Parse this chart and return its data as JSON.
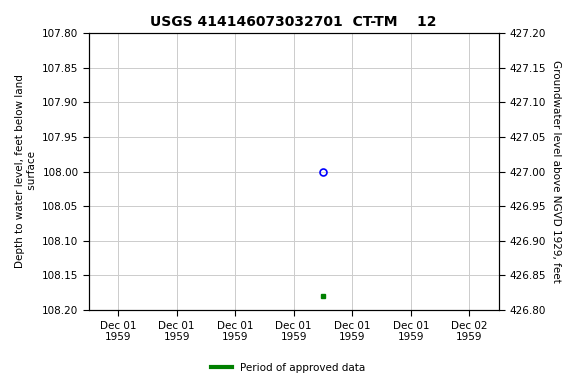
{
  "title": "USGS 414146073032701  CT-TM    12",
  "ylabel_left": "Depth to water level, feet below land\n surface",
  "ylabel_right": "Groundwater level above NGVD 1929, feet",
  "xlabel_labels": [
    "Dec 01\n1959",
    "Dec 01\n1959",
    "Dec 01\n1959",
    "Dec 01\n1959",
    "Dec 01\n1959",
    "Dec 01\n1959",
    "Dec 02\n1959"
  ],
  "ylim_left_top": 107.8,
  "ylim_left_bottom": 108.2,
  "ylim_right_bottom": 426.8,
  "ylim_right_top": 427.2,
  "yticks_left": [
    107.8,
    107.85,
    107.9,
    107.95,
    108.0,
    108.05,
    108.1,
    108.15,
    108.2
  ],
  "yticks_right": [
    426.8,
    426.85,
    426.9,
    426.95,
    427.0,
    427.05,
    427.1,
    427.15,
    427.2
  ],
  "point_open_x": 3.5,
  "point_open_y": 108.0,
  "point_open_color": "blue",
  "point_filled_x": 3.5,
  "point_filled_y": 108.18,
  "point_filled_color": "green",
  "grid_color": "#cccccc",
  "background_color": "white",
  "legend_label": "Period of approved data",
  "legend_color": "green",
  "title_fontsize": 10,
  "tick_fontsize": 7.5,
  "label_fontsize": 7.5,
  "n_xticks": 7,
  "xlim": [
    -0.5,
    6.5
  ]
}
